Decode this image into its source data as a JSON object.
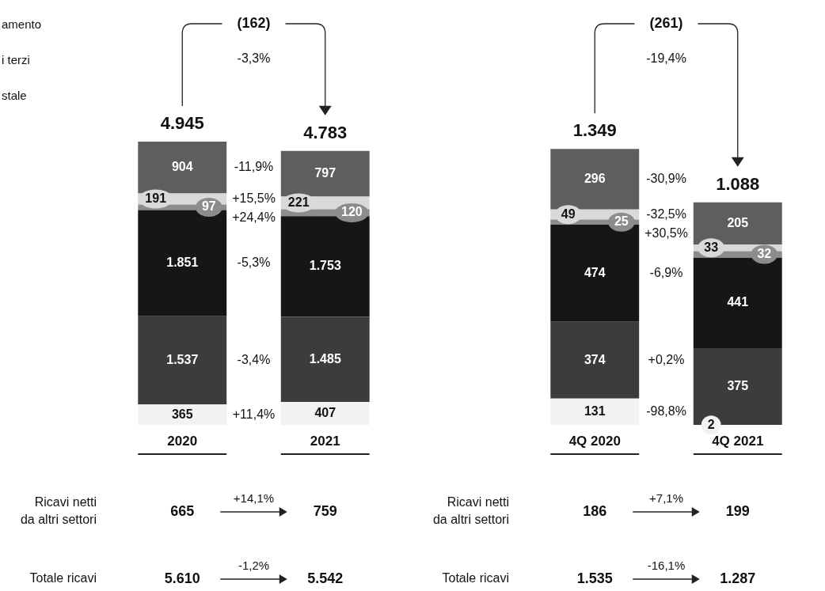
{
  "chart_data": [
    {
      "type": "bar",
      "stacked": true,
      "categories": [
        "2020",
        "2021"
      ],
      "series": [
        {
          "color": "#f2f2f2",
          "values": [
            365,
            407
          ],
          "value_labels": [
            "365",
            "407"
          ]
        },
        {
          "color": "#3c3c3c",
          "values": [
            1537,
            1485
          ],
          "value_labels": [
            "1.537",
            "1.485"
          ]
        },
        {
          "color": "#161616",
          "values": [
            1851,
            1753
          ],
          "value_labels": [
            "1.851",
            "1.753"
          ]
        },
        {
          "color": "#8c8c8c",
          "values": [
            97,
            120
          ],
          "value_labels": [
            "97",
            "120"
          ]
        },
        {
          "color": "#d9d9d9",
          "values": [
            191,
            221
          ],
          "value_labels": [
            "191",
            "221"
          ]
        },
        {
          "color": "#5e5e5e",
          "values": [
            904,
            797
          ],
          "value_labels": [
            "904",
            "797"
          ]
        }
      ],
      "totals": [
        "4.945",
        "4.783"
      ],
      "annotations": [
        "amento",
        "i terzi",
        "stale",
        "(162)",
        "-3,3%",
        "-11,9%",
        "+15,5%",
        "+24,4%",
        "-5,3%",
        "-3,4%",
        "+11,4%",
        "Ricavi netti\nda altri settori",
        "665",
        "+14,1%",
        "759",
        "Totale ricavi",
        "5.610",
        "-1,2%",
        "5.542"
      ]
    },
    {
      "type": "bar",
      "stacked": true,
      "categories": [
        "4Q 2020",
        "4Q 2021"
      ],
      "series": [
        {
          "color": "#f2f2f2",
          "values": [
            131,
            2
          ],
          "value_labels": [
            "131",
            "2"
          ]
        },
        {
          "color": "#3c3c3c",
          "values": [
            374,
            375
          ],
          "value_labels": [
            "374",
            "375"
          ]
        },
        {
          "color": "#161616",
          "values": [
            474,
            441
          ],
          "value_labels": [
            "474",
            "441"
          ]
        },
        {
          "color": "#8c8c8c",
          "values": [
            25,
            32
          ],
          "value_labels": [
            "25",
            "32"
          ]
        },
        {
          "color": "#d9d9d9",
          "values": [
            49,
            33
          ],
          "value_labels": [
            "49",
            "33"
          ]
        },
        {
          "color": "#5e5e5e",
          "values": [
            296,
            205
          ],
          "value_labels": [
            "296",
            "205"
          ]
        }
      ],
      "totals": [
        "1.349",
        "1.088"
      ],
      "annotations": [
        "(261)",
        "-19,4%",
        "-30,9%",
        "-32,5%",
        "+30,5%",
        "-6,9%",
        "+0,2%",
        "-98,8%",
        "Ricavi netti\nda altri settori",
        "186",
        "+7,1%",
        "199",
        "Totale ricavi",
        "1.535",
        "-16,1%",
        "1.287"
      ]
    }
  ]
}
